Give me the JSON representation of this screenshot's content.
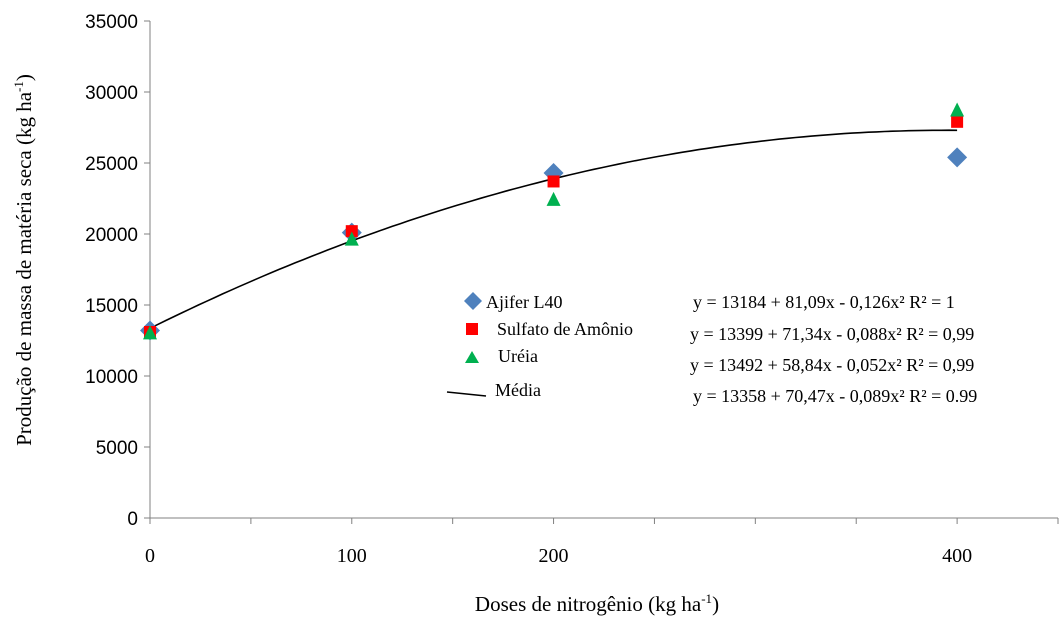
{
  "chart_data": {
    "type": "scatter",
    "xlabel_main": "Doses de nitrogênio (kg ha",
    "xlabel_sup": "-1",
    "xlabel_end": ")",
    "ylabel_main": "Produção de massa de matéria seca (kg ha",
    "ylabel_sup": "-1",
    "ylabel_end": ")",
    "x_ticks": [
      "0",
      "100",
      "200",
      "400"
    ],
    "x_tick_values": [
      0,
      100,
      200,
      400
    ],
    "y_ticks": [
      "0",
      "5000",
      "10000",
      "15000",
      "20000",
      "25000",
      "30000",
      "35000"
    ],
    "y_tick_values": [
      0,
      5000,
      10000,
      15000,
      20000,
      25000,
      30000,
      35000
    ],
    "ylim": [
      0,
      35000
    ],
    "xlim": [
      0,
      450
    ],
    "series": [
      {
        "name": "Ajifer L40",
        "marker": "diamond",
        "color": "#4f81bd",
        "points": [
          {
            "x": 0,
            "y": 13200
          },
          {
            "x": 100,
            "y": 20100
          },
          {
            "x": 200,
            "y": 24300
          },
          {
            "x": 400,
            "y": 25400
          }
        ]
      },
      {
        "name": "Sulfato de Amônio",
        "marker": "square",
        "color": "#ff0000",
        "points": [
          {
            "x": 0,
            "y": 13100
          },
          {
            "x": 100,
            "y": 20200
          },
          {
            "x": 200,
            "y": 23700
          },
          {
            "x": 400,
            "y": 27900
          }
        ]
      },
      {
        "name": "Uréia",
        "marker": "triangle",
        "color": "#00b050",
        "points": [
          {
            "x": 0,
            "y": 13000
          },
          {
            "x": 100,
            "y": 19600
          },
          {
            "x": 200,
            "y": 22400
          },
          {
            "x": 400,
            "y": 28700
          }
        ]
      },
      {
        "name": "Média",
        "marker": "line",
        "color": "#000000",
        "fit": {
          "intercept": 13358,
          "b": 70.47,
          "c": -0.089
        },
        "x_range": [
          0,
          400
        ]
      }
    ],
    "equations": [
      "y =  13184 + 81,09x - 0,126x² R² = 1",
      "y =  13399 + 71,34x - 0,088x²  R² = 0,99",
      "y = 13492  + 58,84x - 0,052x² R² = 0,99",
      "y =  13358 + 70,47x - 0,089x² R² = 0.99"
    ],
    "grid": false,
    "legend_position": "center-right"
  }
}
